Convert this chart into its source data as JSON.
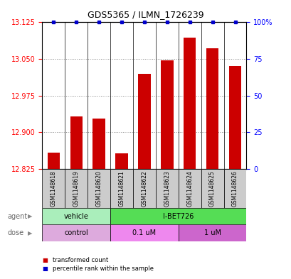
{
  "title": "GDS5365 / ILMN_1726239",
  "samples": [
    "GSM1148618",
    "GSM1148619",
    "GSM1148620",
    "GSM1148621",
    "GSM1148622",
    "GSM1148623",
    "GSM1148624",
    "GSM1148625",
    "GSM1148626"
  ],
  "bar_values": [
    12.858,
    12.932,
    12.928,
    12.857,
    13.02,
    13.047,
    13.093,
    13.072,
    13.035
  ],
  "percentile_values": [
    100,
    100,
    100,
    100,
    100,
    100,
    100,
    100,
    100
  ],
  "bar_color": "#cc0000",
  "percentile_color": "#0000cc",
  "ylim_left": [
    12.825,
    13.125
  ],
  "ylim_right": [
    0,
    100
  ],
  "yticks_left": [
    12.825,
    12.9,
    12.975,
    13.05,
    13.125
  ],
  "yticks_right": [
    0,
    25,
    50,
    75,
    100
  ],
  "ytick_labels_right": [
    "0",
    "25",
    "50",
    "75",
    "100%"
  ],
  "agent_groups": [
    {
      "label": "vehicle",
      "start": 0,
      "end": 3,
      "color": "#aaeebb"
    },
    {
      "label": "I-BET726",
      "start": 3,
      "end": 9,
      "color": "#55dd55"
    }
  ],
  "dose_groups": [
    {
      "label": "control",
      "start": 0,
      "end": 3,
      "color": "#ddaadd"
    },
    {
      "label": "0.1 uM",
      "start": 3,
      "end": 6,
      "color": "#ee88ee"
    },
    {
      "label": "1 uM",
      "start": 6,
      "end": 9,
      "color": "#cc66cc"
    }
  ],
  "bar_width": 0.55,
  "background_color": "#ffffff",
  "grid_color": "#888888"
}
